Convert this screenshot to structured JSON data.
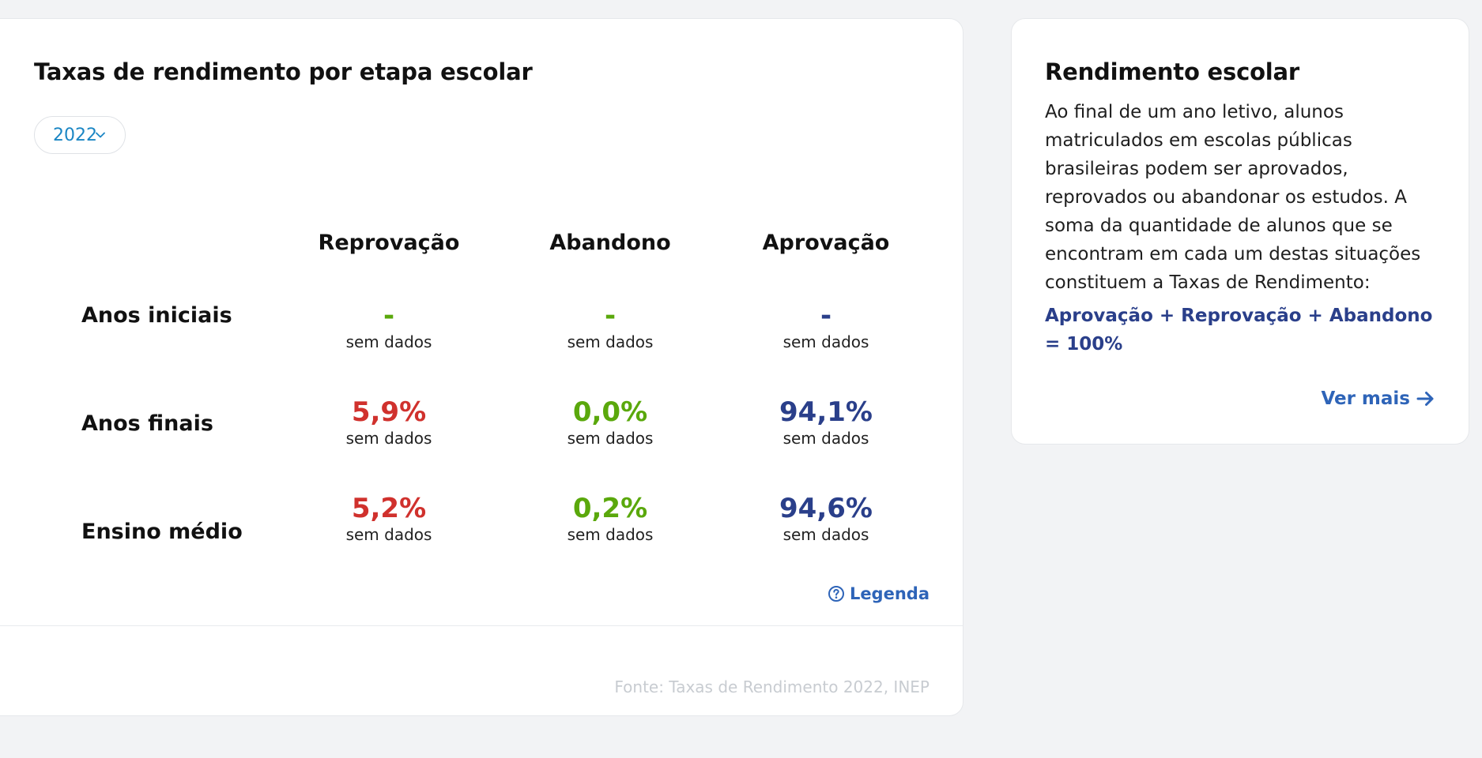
{
  "main_card": {
    "title": "Taxas de rendimento por etapa escolar",
    "year_select": {
      "value": "2022"
    },
    "columns": [
      "Reprovação",
      "Abandono",
      "Aprovação"
    ],
    "rows": [
      {
        "label": "Anos iniciais",
        "cells": [
          {
            "value": "-",
            "note": "sem dados"
          },
          {
            "value": "-",
            "note": "sem dados"
          },
          {
            "value": "-",
            "note": "sem dados"
          }
        ]
      },
      {
        "label": "Anos finais",
        "cells": [
          {
            "value": "5,9%",
            "note": "sem dados"
          },
          {
            "value": "0,0%",
            "note": "sem dados"
          },
          {
            "value": "94,1%",
            "note": "sem dados"
          }
        ]
      },
      {
        "label": "Ensino médio",
        "cells": [
          {
            "value": "5,2%",
            "note": "sem dados"
          },
          {
            "value": "0,2%",
            "note": "sem dados"
          },
          {
            "value": "94,6%",
            "note": "sem dados"
          }
        ]
      }
    ],
    "legend_label": "Legenda",
    "source": "Fonte: Taxas de Rendimento 2022, INEP"
  },
  "side_card": {
    "title": "Rendimento escolar",
    "body": "Ao final de um ano letivo, alunos matriculados em escolas públicas brasileiras podem ser aprovados, reprovados ou abandonar os estudos. A soma da quantidade de alunos que se encontram em cada um destas situações constituem a Taxas de Rendimento:",
    "formula": "Aprovação + Reprovação + Abandono = 100%",
    "see_more_label": "Ver mais"
  },
  "colors": {
    "reprovacao": "#d0312d",
    "abandono": "#5aa80c",
    "aprovacao": "#2a3f8a",
    "link": "#2e64b8",
    "select_text": "#1b86c4"
  },
  "icons": {
    "select": "chevron-down-icon",
    "legend": "help-circle-icon",
    "see_more": "arrow-right-icon"
  }
}
